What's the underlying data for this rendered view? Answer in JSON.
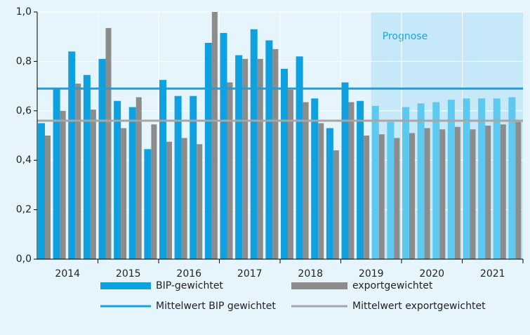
{
  "chart_data": {
    "type": "bar",
    "years": [
      "2014",
      "2015",
      "2016",
      "2017",
      "2018",
      "2019",
      "2020",
      "2021"
    ],
    "periods_per_year": 4,
    "series": [
      {
        "name": "BIP-gewichtet",
        "color": "#0ea0df",
        "forecast_color": "#5dc9f1",
        "values": [
          0.55,
          0.69,
          0.84,
          0.745,
          0.81,
          0.64,
          0.615,
          0.445,
          0.725,
          0.66,
          0.66,
          0.875,
          0.915,
          0.825,
          0.93,
          0.885,
          0.77,
          0.82,
          0.65,
          0.53,
          0.715,
          0.64,
          0.62,
          0.555,
          0.615,
          0.63,
          0.635,
          0.645,
          0.65,
          0.65,
          0.65,
          0.655
        ]
      },
      {
        "name": "exportgewichtet",
        "color": "#8c8c8c",
        "forecast_color": "#8c8c8c",
        "values": [
          0.5,
          0.6,
          0.71,
          0.605,
          0.935,
          0.53,
          0.655,
          0.545,
          0.475,
          0.49,
          0.465,
          1.0,
          0.715,
          0.81,
          0.81,
          0.85,
          0.685,
          0.635,
          0.55,
          0.44,
          0.635,
          0.5,
          0.505,
          0.49,
          0.51,
          0.53,
          0.525,
          0.535,
          0.525,
          0.54,
          0.545,
          0.555
        ]
      }
    ],
    "mean_lines": [
      {
        "name": "Mittelwert BIP gewichtet",
        "color": "#1a9fd8",
        "value": 0.69
      },
      {
        "name": "Mittelwert exportgewichtet",
        "color": "#a6a6a6",
        "value": 0.56
      }
    ],
    "forecast": {
      "label": "Prognose",
      "from_index": 22,
      "color": "#c6e8f8"
    },
    "ylim": [
      0,
      1
    ],
    "yticks": [
      {
        "value": 0,
        "label": "0,0"
      },
      {
        "value": 0.2,
        "label": "0,2"
      },
      {
        "value": 0.4,
        "label": "0,4"
      },
      {
        "value": 0.6,
        "label": "0,6"
      },
      {
        "value": 0.8,
        "label": "0,8"
      },
      {
        "value": 1,
        "label": "1,0"
      }
    ],
    "grid": true
  }
}
